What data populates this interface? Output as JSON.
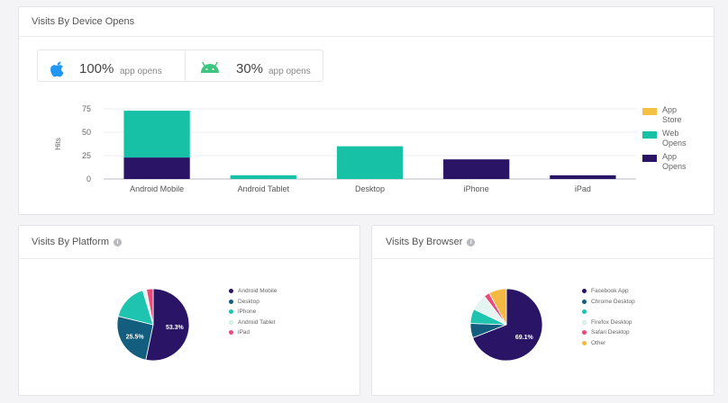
{
  "device_panel": {
    "title": "Visits By Device Opens",
    "cards": [
      {
        "icon": "apple-icon",
        "value": "100%",
        "label": "app opens"
      },
      {
        "icon": "android-icon",
        "value": "30%",
        "label": "app opens"
      }
    ]
  },
  "platform_panel": {
    "title": "Visits By Platform"
  },
  "browser_panel": {
    "title": "Visits By Browser"
  },
  "colors": {
    "dark_navy": "#2a1466",
    "teal": "#16c1a6",
    "yellow": "#f4c242",
    "dark_teal": "#135e7f",
    "light_teal": "#1fc4b0",
    "pale": "#e4f4f1",
    "pink": "#e84a7a",
    "orange": "#f4b942"
  },
  "chart_data": [
    {
      "type": "bar",
      "stacked": true,
      "categories": [
        "Android Mobile",
        "Android Tablet",
        "Desktop",
        "iPhone",
        "iPad"
      ],
      "ylabel": "Hits",
      "ylim": [
        0,
        75
      ],
      "yticks": [
        0,
        25,
        50,
        75
      ],
      "grid": true,
      "legend_position": "right",
      "series": [
        {
          "name": "App Opens",
          "color": "#2a1466",
          "values": [
            23,
            0,
            0,
            21,
            4
          ]
        },
        {
          "name": "Web Opens",
          "color": "#16c1a6",
          "values": [
            50,
            4,
            35,
            0,
            0
          ]
        },
        {
          "name": "App Store",
          "color": "#f4c242",
          "values": [
            0,
            0,
            0,
            0,
            0
          ]
        }
      ]
    },
    {
      "type": "pie",
      "labels": [
        "Android Mobile",
        "Desktop",
        "iPhone",
        "Android Tablet",
        "iPad"
      ],
      "values": [
        53.3,
        25.5,
        16.5,
        1.7,
        3.0
      ],
      "data_labels": [
        "53.3%",
        "25.5%",
        "",
        "",
        ""
      ],
      "colors": [
        "#2a1466",
        "#135e7f",
        "#1fc4b0",
        "#e4f4f1",
        "#e84a7a"
      ],
      "legend_position": "right"
    },
    {
      "type": "pie",
      "labels": [
        "Facebook App",
        "Chrome Desktop",
        "",
        "Firefox Desktop",
        "Safari Desktop",
        "Other"
      ],
      "values": [
        69.1,
        6.5,
        6.5,
        7.5,
        2.5,
        7.9
      ],
      "data_labels": [
        "69.1%",
        "",
        "",
        "",
        "",
        ""
      ],
      "colors": [
        "#2a1466",
        "#135e7f",
        "#1fc4b0",
        "#e4f4f1",
        "#e84a7a",
        "#f4b942"
      ],
      "legend_position": "right"
    }
  ]
}
